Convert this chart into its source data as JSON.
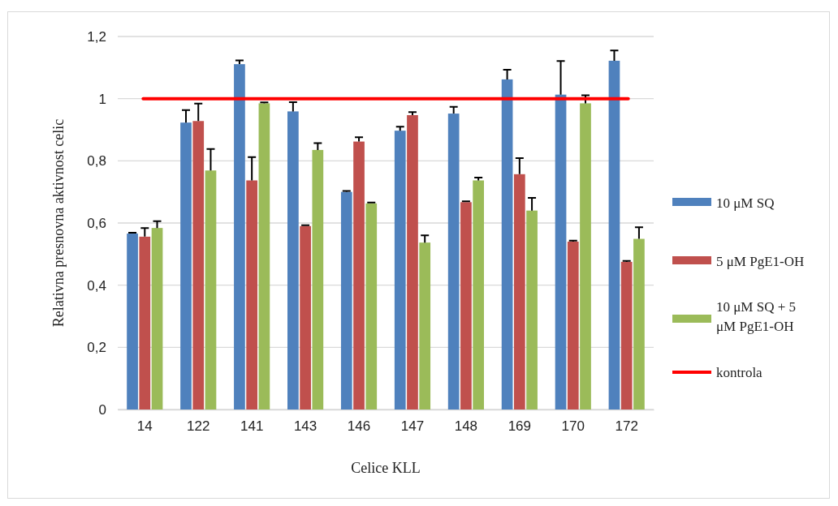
{
  "chart_data": {
    "type": "bar",
    "xlabel": "Celice KLL",
    "ylabel": "Relativna presnovna aktivnost celic",
    "categories": [
      "14",
      "122",
      "141",
      "143",
      "146",
      "147",
      "148",
      "169",
      "170",
      "172"
    ],
    "series": [
      {
        "name": "10 μM SQ",
        "color": "#4f81bd",
        "values": [
          0.566,
          0.923,
          1.111,
          0.959,
          0.7,
          0.897,
          0.952,
          1.062,
          1.013,
          1.122
        ],
        "errors": [
          [
            0.566,
            0.569
          ],
          [
            0.923,
            0.963
          ],
          [
            1.111,
            1.123
          ],
          [
            0.959,
            0.989
          ],
          [
            0.7,
            0.703
          ],
          [
            0.897,
            0.91
          ],
          [
            0.952,
            0.974
          ],
          [
            1.062,
            1.093
          ],
          [
            1.013,
            1.121
          ],
          [
            1.122,
            1.155
          ]
        ]
      },
      {
        "name": "5 μM PgE1-OH",
        "color": "#c0504d",
        "values": [
          0.556,
          0.928,
          0.737,
          0.59,
          0.862,
          0.947,
          0.667,
          0.757,
          0.54,
          0.475
        ],
        "errors": [
          [
            0.556,
            0.584
          ],
          [
            0.928,
            0.984
          ],
          [
            0.737,
            0.812
          ],
          [
            0.59,
            0.593
          ],
          [
            0.862,
            0.876
          ],
          [
            0.947,
            0.957
          ],
          [
            0.667,
            0.67
          ],
          [
            0.757,
            0.809
          ],
          [
            0.54,
            0.543
          ],
          [
            0.475,
            0.478
          ]
        ]
      },
      {
        "name": "10 μM SQ + 5 μM PgE1-OH",
        "color": "#9bbb59",
        "values": [
          0.584,
          0.769,
          0.985,
          0.835,
          0.663,
          0.537,
          0.737,
          0.64,
          0.985,
          0.549
        ],
        "errors": [
          [
            0.584,
            0.606
          ],
          [
            0.769,
            0.838
          ],
          [
            0.985,
            0.988
          ],
          [
            0.835,
            0.857
          ],
          [
            0.663,
            0.666
          ],
          [
            0.537,
            0.56
          ],
          [
            0.737,
            0.746
          ],
          [
            0.64,
            0.681
          ],
          [
            0.985,
            1.011
          ],
          [
            0.549,
            0.586
          ]
        ]
      }
    ],
    "ref_lines": [
      {
        "axis": "y",
        "value": 1,
        "label": "kontrola",
        "color": "#ff0000"
      }
    ],
    "ylim": [
      0,
      1.2
    ],
    "yticks": [
      0,
      {
        "value": 0.2,
        "label": "0,2"
      },
      {
        "value": 0.4,
        "label": "0,4"
      },
      {
        "value": 0.6,
        "label": "0,6"
      },
      {
        "value": 0.8,
        "label": "0,8"
      },
      1,
      {
        "value": 1.2,
        "label": "1,2"
      }
    ],
    "grid": "y",
    "legend": "right"
  }
}
